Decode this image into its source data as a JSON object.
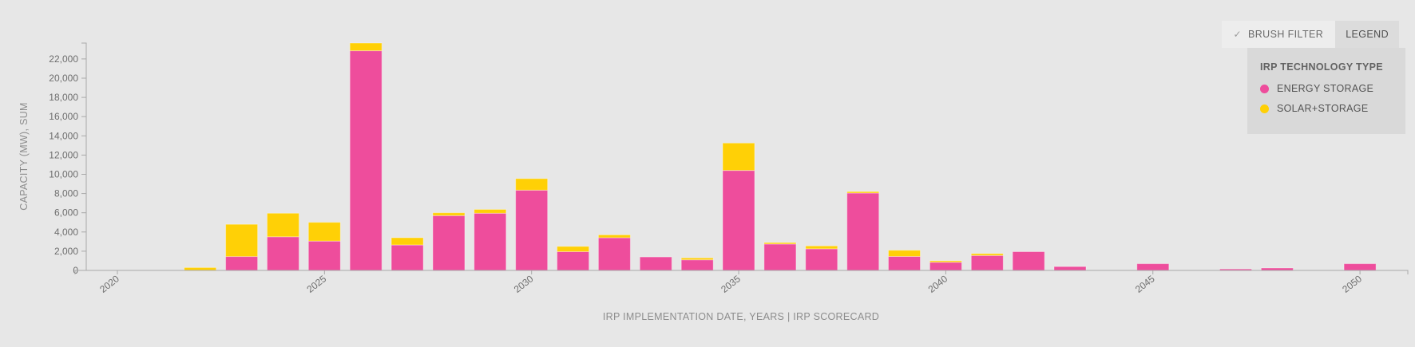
{
  "toolbar": {
    "brush_filter_check": "✓",
    "brush_filter_label": "BRUSH FILTER",
    "legend_label": "LEGEND"
  },
  "legend": {
    "title": "IRP TECHNOLOGY TYPE",
    "items": [
      {
        "label": "ENERGY STORAGE",
        "color": "#ee4d9c"
      },
      {
        "label": "SOLAR+STORAGE",
        "color": "#ffd006"
      }
    ]
  },
  "chart_data": {
    "type": "bar",
    "stacked": true,
    "xlabel": "IRP IMPLEMENTATION DATE, YEARS | IRP SCORECARD",
    "ylabel": "CAPACITY (MW), SUM",
    "x": [
      2022,
      2023,
      2024,
      2025,
      2026,
      2027,
      2028,
      2029,
      2030,
      2031,
      2032,
      2033,
      2034,
      2035,
      2036,
      2037,
      2038,
      2039,
      2040,
      2041,
      2042,
      2043,
      2044,
      2045,
      2046,
      2047,
      2048,
      2049,
      2050
    ],
    "series": [
      {
        "name": "ENERGY STORAGE",
        "color": "#ee4d9c",
        "values": [
          0,
          1450,
          3500,
          3050,
          22850,
          2650,
          5700,
          5950,
          8350,
          1950,
          3400,
          1400,
          1100,
          10400,
          2750,
          2250,
          8050,
          1450,
          850,
          1550,
          1950,
          400,
          0,
          700,
          0,
          150,
          250,
          0,
          700
        ]
      },
      {
        "name": "SOLAR+STORAGE",
        "color": "#ffd006",
        "values": [
          300,
          3350,
          2450,
          1950,
          800,
          750,
          300,
          400,
          1200,
          550,
          300,
          0,
          200,
          2850,
          150,
          300,
          150,
          650,
          150,
          200,
          0,
          0,
          0,
          0,
          0,
          0,
          0,
          0,
          0
        ]
      }
    ],
    "xlim": [
      2019,
      2051.2
    ],
    "ylim": [
      0,
      23650
    ],
    "x_ticks": [
      {
        "value": 2020,
        "label": "2020"
      },
      {
        "value": 2025,
        "label": "2025"
      },
      {
        "value": 2030,
        "label": "2030"
      },
      {
        "value": 2035,
        "label": "2035"
      },
      {
        "value": 2040,
        "label": "2040"
      },
      {
        "value": 2045,
        "label": "2045"
      },
      {
        "value": 2050,
        "label": "2050"
      }
    ],
    "y_ticks": [
      {
        "value": 0,
        "label": "0"
      },
      {
        "value": 2000,
        "label": "2,000"
      },
      {
        "value": 4000,
        "label": "4,000"
      },
      {
        "value": 6000,
        "label": "6,000"
      },
      {
        "value": 8000,
        "label": "8,000"
      },
      {
        "value": 10000,
        "label": "10,000"
      },
      {
        "value": 12000,
        "label": "12,000"
      },
      {
        "value": 14000,
        "label": "14,000"
      },
      {
        "value": 16000,
        "label": "16,000"
      },
      {
        "value": 18000,
        "label": "18,000"
      },
      {
        "value": 20000,
        "label": "20,000"
      },
      {
        "value": 22000,
        "label": "22,000"
      }
    ],
    "grid": false,
    "legend_position": "top-right"
  },
  "colors": {
    "background": "#e7e7e7",
    "legend_panel": "#d9d9d9",
    "brush_button": "#ededed",
    "legend_button": "#dcdcdc",
    "axis_line": "#a8a8a8",
    "tick_text": "#6e6e6e"
  }
}
